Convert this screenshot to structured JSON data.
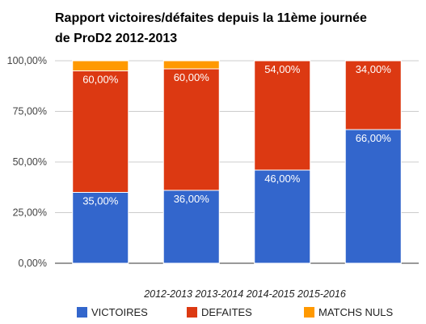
{
  "chart_data": {
    "type": "bar",
    "stacked": true,
    "title_lines": [
      "Rapport victoires/défaites depuis la 11ème journée",
      "de ProD2 2012-2013"
    ],
    "categories": [
      "2012-2013",
      "2013-2014",
      "2014-2015",
      "2015-2016"
    ],
    "series": [
      {
        "name": "VICTOIRES",
        "color": "#3366cc",
        "values": [
          35,
          36,
          46,
          66
        ],
        "labels": [
          "35,00%",
          "36,00%",
          "46,00%",
          "66,00%"
        ]
      },
      {
        "name": "DEFAITES",
        "color": "#dc3912",
        "values": [
          60,
          60,
          54,
          34
        ],
        "labels": [
          "60,00%",
          "60,00%",
          "54,00%",
          "34,00%"
        ]
      },
      {
        "name": "MATCHS NULS",
        "color": "#ff9900",
        "values": [
          5,
          4,
          0,
          0
        ],
        "labels": [
          "",
          "",
          "",
          ""
        ]
      }
    ],
    "yticks": [
      0,
      25,
      50,
      75,
      100
    ],
    "ytick_labels": [
      "0,00%",
      "25,00%",
      "50,00%",
      "75,00%",
      "100,00%"
    ],
    "ylim": [
      0,
      100
    ],
    "grid": true,
    "legend_position": "bottom",
    "xlabel": "",
    "ylabel": ""
  }
}
